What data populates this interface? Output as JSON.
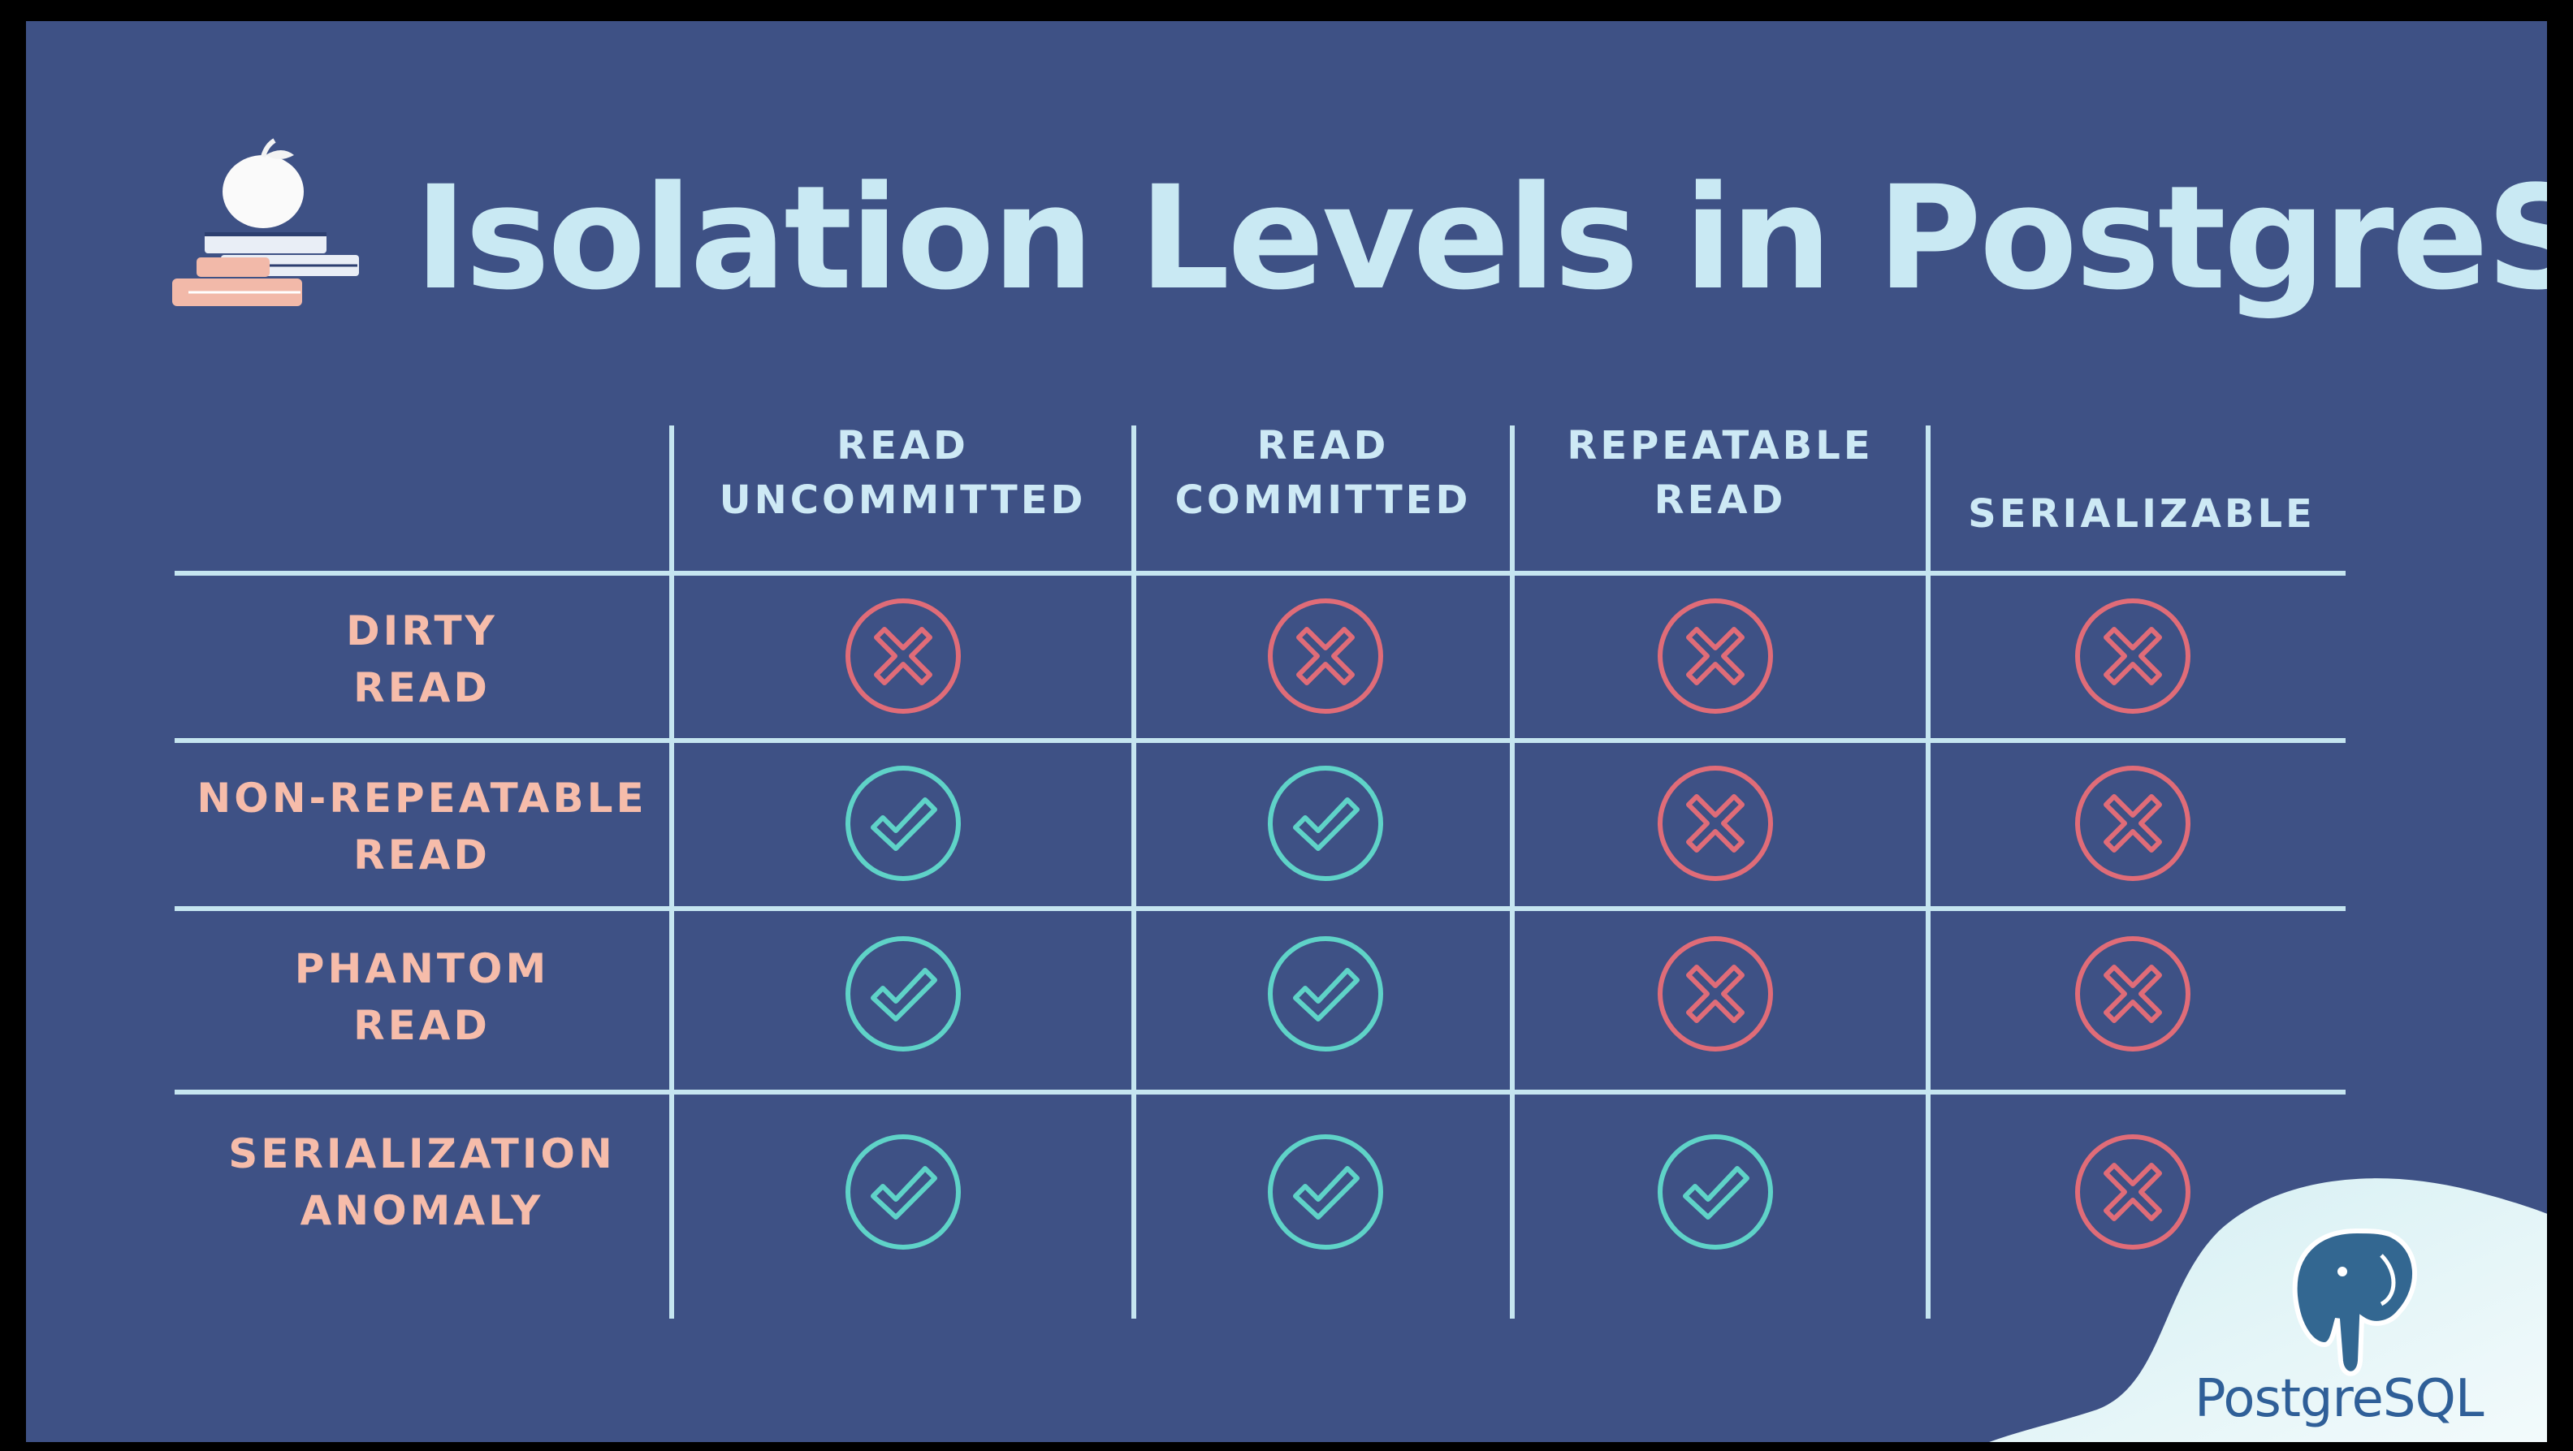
{
  "title": "Isolation Levels in PostgreSQL",
  "logo_icon": "apple-on-books-icon",
  "columns": [
    "READ\nUNCOMMITTED",
    "READ\nCOMMITTED",
    "REPEATABLE\nREAD",
    "SERIALIZABLE"
  ],
  "rows": [
    {
      "label": "DIRTY\nREAD",
      "cells": [
        "x",
        "x",
        "x",
        "x"
      ]
    },
    {
      "label": "NON-REPEATABLE\nREAD",
      "cells": [
        "check",
        "check",
        "x",
        "x"
      ]
    },
    {
      "label": "PHANTOM\nREAD",
      "cells": [
        "check",
        "check",
        "x",
        "x"
      ]
    },
    {
      "label": "SERIALIZATION\nANOMALY",
      "cells": [
        "check",
        "check",
        "check",
        "x"
      ]
    }
  ],
  "icons": {
    "x": "x-circle-icon",
    "check": "check-circle-icon"
  },
  "brand": {
    "text": "PostgreSQL",
    "icon": "postgresql-elephant-icon"
  },
  "colors": {
    "background": "#3e5185",
    "title": "#c9e9f3",
    "header_text": "#cde9f5",
    "row_label": "#f6bcaa",
    "grid": "#c5e5f0",
    "x_mark": "#e06c78",
    "check_mark": "#5fd3c8",
    "brand_text": "#2f5f98"
  }
}
